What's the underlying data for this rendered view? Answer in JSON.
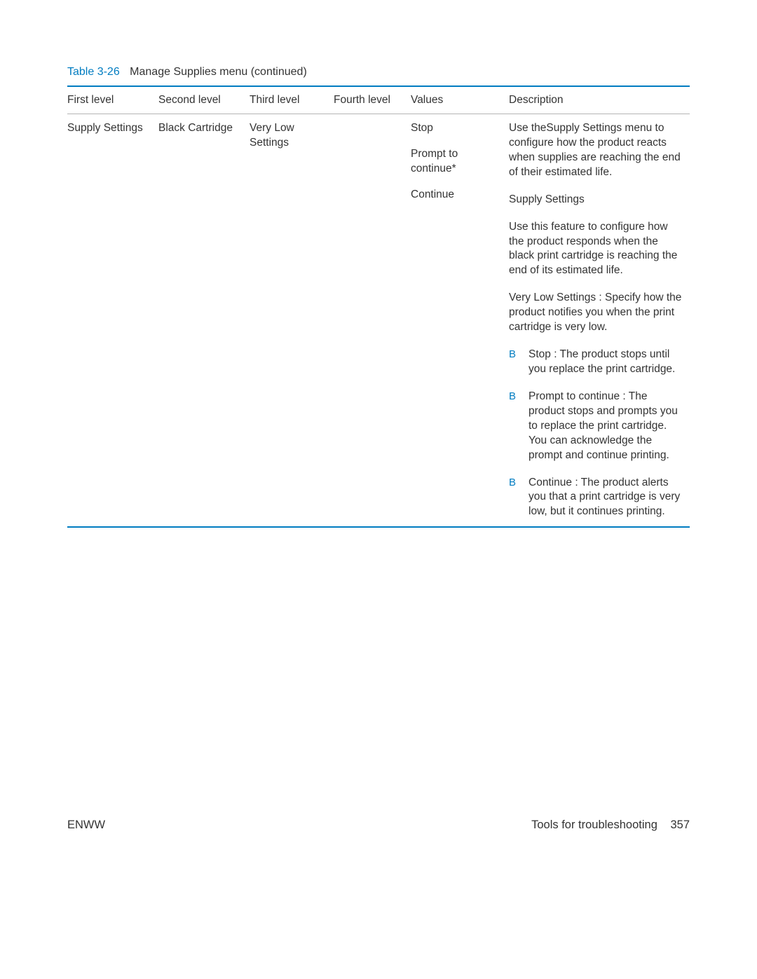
{
  "table": {
    "label": "Table 3-26",
    "title": "Manage Supplies menu (continued)",
    "headers": {
      "l1": "First level",
      "l2": "Second level",
      "l3": "Third level",
      "l4": "Fourth level",
      "vals": "Values",
      "desc": "Description"
    },
    "row": {
      "l1": "Supply Settings",
      "l2": "Black Cartridge",
      "l3": "Very Low Settings",
      "l4": "",
      "values": {
        "v1": "Stop",
        "v2": "Prompt to continue*",
        "v3": "Continue"
      },
      "desc": {
        "p1": "Use theSupply Settings  menu to configure how the product reacts when supplies are reaching the end of their estimated life.",
        "p2": "Supply Settings",
        "p3": "Use this feature to configure how the product responds when the black print cartridge is reaching the end of its estimated life.",
        "p4": "Very Low Settings : Specify how the product notifies you when the print cartridge is very low.",
        "bullets": {
          "b1": "Stop : The product stops until you replace the print cartridge.",
          "b2": "Prompt to continue  : The product stops and prompts you to replace the print cartridge. You can acknowledge the prompt and continue printing.",
          "b3": "Continue  : The product alerts you that a print cartridge is very low, but it continues printing."
        }
      }
    }
  },
  "footer": {
    "left": "ENWW",
    "rightLabel": "Tools for troubleshooting",
    "pageNumber": "357"
  },
  "colors": {
    "accent": "#007cc1",
    "text": "#333333",
    "ruleGray": "#b5b5b5"
  }
}
